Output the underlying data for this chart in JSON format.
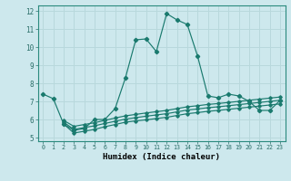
{
  "xlabel": "Humidex (Indice chaleur)",
  "xlim": [
    -0.5,
    23.5
  ],
  "ylim": [
    4.8,
    12.3
  ],
  "yticks": [
    5,
    6,
    7,
    8,
    9,
    10,
    11,
    12
  ],
  "xticks": [
    0,
    1,
    2,
    3,
    4,
    5,
    6,
    7,
    8,
    9,
    10,
    11,
    12,
    13,
    14,
    15,
    16,
    17,
    18,
    19,
    20,
    21,
    22,
    23
  ],
  "bg_color": "#cde8ed",
  "line_color": "#1a7a6e",
  "grid_color": "#b8d8dc",
  "main_line": {
    "x": [
      0,
      1,
      2,
      3,
      4,
      5,
      6,
      7,
      8,
      9,
      10,
      11,
      12,
      13,
      14,
      15,
      16,
      17,
      18,
      19,
      20,
      21,
      22,
      23
    ],
    "y": [
      7.4,
      7.15,
      5.75,
      5.4,
      5.5,
      6.0,
      6.0,
      6.6,
      8.3,
      10.4,
      10.45,
      9.75,
      11.85,
      11.5,
      11.25,
      9.5,
      7.3,
      7.2,
      7.4,
      7.3,
      7.0,
      6.5,
      6.5,
      7.05
    ]
  },
  "flat_lines": [
    {
      "x": [
        2,
        3,
        4,
        5,
        6,
        7,
        8,
        9,
        10,
        11,
        12,
        13,
        14,
        15,
        16,
        17,
        18,
        19,
        20,
        21,
        22,
        23
      ],
      "y": [
        5.75,
        5.25,
        5.35,
        5.45,
        5.6,
        5.72,
        5.85,
        5.92,
        5.98,
        6.05,
        6.12,
        6.22,
        6.32,
        6.38,
        6.45,
        6.5,
        6.56,
        6.62,
        6.68,
        6.74,
        6.8,
        6.86
      ]
    },
    {
      "x": [
        2,
        3,
        4,
        5,
        6,
        7,
        8,
        9,
        10,
        11,
        12,
        13,
        14,
        15,
        16,
        17,
        18,
        19,
        20,
        21,
        22,
        23
      ],
      "y": [
        5.85,
        5.45,
        5.55,
        5.65,
        5.78,
        5.9,
        6.02,
        6.1,
        6.18,
        6.25,
        6.32,
        6.42,
        6.52,
        6.58,
        6.65,
        6.7,
        6.76,
        6.82,
        6.88,
        6.94,
        7.0,
        7.06
      ]
    },
    {
      "x": [
        2,
        3,
        4,
        5,
        6,
        7,
        8,
        9,
        10,
        11,
        12,
        13,
        14,
        15,
        16,
        17,
        18,
        19,
        20,
        21,
        22,
        23
      ],
      "y": [
        5.95,
        5.62,
        5.72,
        5.82,
        5.95,
        6.08,
        6.2,
        6.28,
        6.36,
        6.43,
        6.5,
        6.6,
        6.7,
        6.76,
        6.83,
        6.88,
        6.94,
        7.0,
        7.06,
        7.12,
        7.18,
        7.24
      ]
    }
  ]
}
